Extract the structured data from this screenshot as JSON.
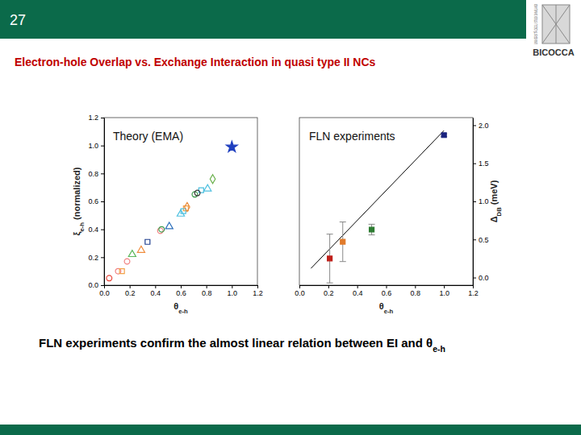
{
  "slide": {
    "number": "27",
    "logo_text": "UNIVERSITÀ DEGLI STUDI DI MILANO",
    "logo_name": "BICOCCA",
    "title": "Electron-hole Overlap vs. Exchange Interaction in quasi type II NCs",
    "caption": [
      "FLN experiments confirm the almost linear relation between EI and θ",
      "e-h"
    ]
  },
  "chart_data": [
    {
      "type": "scatter",
      "title": "Theory (EMA)",
      "xlabel": [
        "θ",
        "e-h"
      ],
      "ylabel": [
        "ξ",
        "e-h",
        " (normalized)"
      ],
      "xlim": [
        0,
        1.2
      ],
      "ylim": [
        0,
        1.2
      ],
      "xticks": [
        {
          "value": 0,
          "label": "0.0"
        },
        0.2,
        0.4,
        0.6,
        0.8,
        {
          "value": 1,
          "label": "1.0"
        },
        1.2
      ],
      "yticks": [
        {
          "value": 0,
          "label": "0.0"
        },
        0.2,
        0.4,
        0.6,
        0.8,
        {
          "value": 1,
          "label": "1.0"
        },
        1.2
      ],
      "series": [
        {
          "color": "#e8463a",
          "marker": "open-circle",
          "x": [
            0.04
          ],
          "values": [
            0.05
          ]
        },
        {
          "color": "#f08080",
          "marker": "open-circle",
          "x": [
            0.11,
            0.18,
            0.44
          ],
          "values": [
            0.1,
            0.17,
            0.39
          ]
        },
        {
          "color": "#f4a24a",
          "marker": "open-square",
          "x": [
            0.14,
            0.64
          ],
          "values": [
            0.1,
            0.55
          ]
        },
        {
          "color": "#5cb85c",
          "marker": "open-triangle",
          "x": [
            0.22
          ],
          "values": [
            0.22
          ]
        },
        {
          "color": "#f08c3c",
          "marker": "open-triangle",
          "x": [
            0.29
          ],
          "values": [
            0.25
          ]
        },
        {
          "color": "#1f3f8f",
          "marker": "open-square",
          "x": [
            0.34
          ],
          "values": [
            0.31
          ]
        },
        {
          "color": "#3a9a4a",
          "marker": "open-circle",
          "x": [
            0.45,
            0.71
          ],
          "values": [
            0.4,
            0.65
          ]
        },
        {
          "color": "#2c6fbb",
          "marker": "open-triangle",
          "x": [
            0.51
          ],
          "values": [
            0.42
          ]
        },
        {
          "color": "#4ec0e0",
          "marker": "open-triangle",
          "x": [
            0.6,
            0.81
          ],
          "values": [
            0.51,
            0.69
          ]
        },
        {
          "color": "#4ec0e0",
          "marker": "open-square",
          "x": [
            0.62,
            0.76
          ],
          "values": [
            0.53,
            0.68
          ]
        },
        {
          "color": "#e88a3a",
          "marker": "open-diamond",
          "x": [
            0.65
          ],
          "values": [
            0.56
          ]
        },
        {
          "color": "#333333",
          "marker": "open-circle",
          "x": [
            0.73
          ],
          "values": [
            0.66
          ]
        },
        {
          "color": "#6ab04c",
          "marker": "open-diamond",
          "x": [
            0.85
          ],
          "values": [
            0.76
          ]
        },
        {
          "color": "#1f3fbf",
          "marker": "filled-star",
          "x": [
            1.0
          ],
          "values": [
            0.99
          ]
        }
      ]
    },
    {
      "type": "scatter",
      "title": "FLN experiments",
      "xlabel": [
        "θ",
        "e-h"
      ],
      "ylabel": [
        "Δ",
        "DB",
        " (meV)"
      ],
      "xlim": [
        0,
        1.2
      ],
      "ylim": [
        -0.1,
        2.1
      ],
      "xticks": [
        {
          "value": 0,
          "label": "0.0"
        },
        0.2,
        0.4,
        0.6,
        0.8,
        {
          "value": 1,
          "label": "1.0"
        },
        1.2
      ],
      "yticks": [
        {
          "value": 0,
          "label": "0.0"
        },
        0.5,
        {
          "value": 1,
          "label": "1.0"
        },
        1.5,
        {
          "value": 2,
          "label": "2.0"
        }
      ],
      "series": [
        {
          "type": "line",
          "color": "#000000",
          "line_style": "solid",
          "x": [
            0.08,
            1.0
          ],
          "values": [
            0.12,
            1.93
          ]
        },
        {
          "color": "#c0201a",
          "marker": "filled-square",
          "x": [
            0.21
          ],
          "values": [
            0.25
          ],
          "errors": [
            0.32
          ]
        },
        {
          "color": "#e07a2a",
          "marker": "filled-square",
          "x": [
            0.3
          ],
          "values": [
            0.47
          ],
          "errors": [
            0.26
          ]
        },
        {
          "color": "#2e7d32",
          "marker": "filled-square",
          "x": [
            0.5
          ],
          "values": [
            0.63
          ],
          "errors": [
            0.07
          ]
        },
        {
          "color": "#1a237e",
          "marker": "filled-square",
          "x": [
            1.0
          ],
          "values": [
            1.87
          ],
          "errors": [
            0.02
          ]
        }
      ]
    }
  ]
}
